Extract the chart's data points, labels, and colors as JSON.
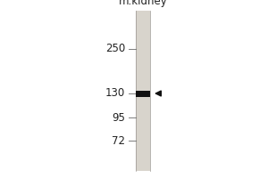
{
  "background_color": "#ffffff",
  "gel_lane_color": "#d8d4cc",
  "gel_lane_edge_color": "#aaa8a0",
  "outer_background": "#ffffff",
  "lane_label": "m.kidney",
  "lane_label_fontsize": 8.5,
  "lane_label_color": "#222222",
  "mw_markers": [
    250,
    130,
    95,
    72
  ],
  "mw_marker_fontsize": 8.5,
  "mw_marker_color": "#222222",
  "band_color": "#111111",
  "arrow_color": "#111111",
  "figure_width": 3.0,
  "figure_height": 2.0,
  "dpi": 100
}
